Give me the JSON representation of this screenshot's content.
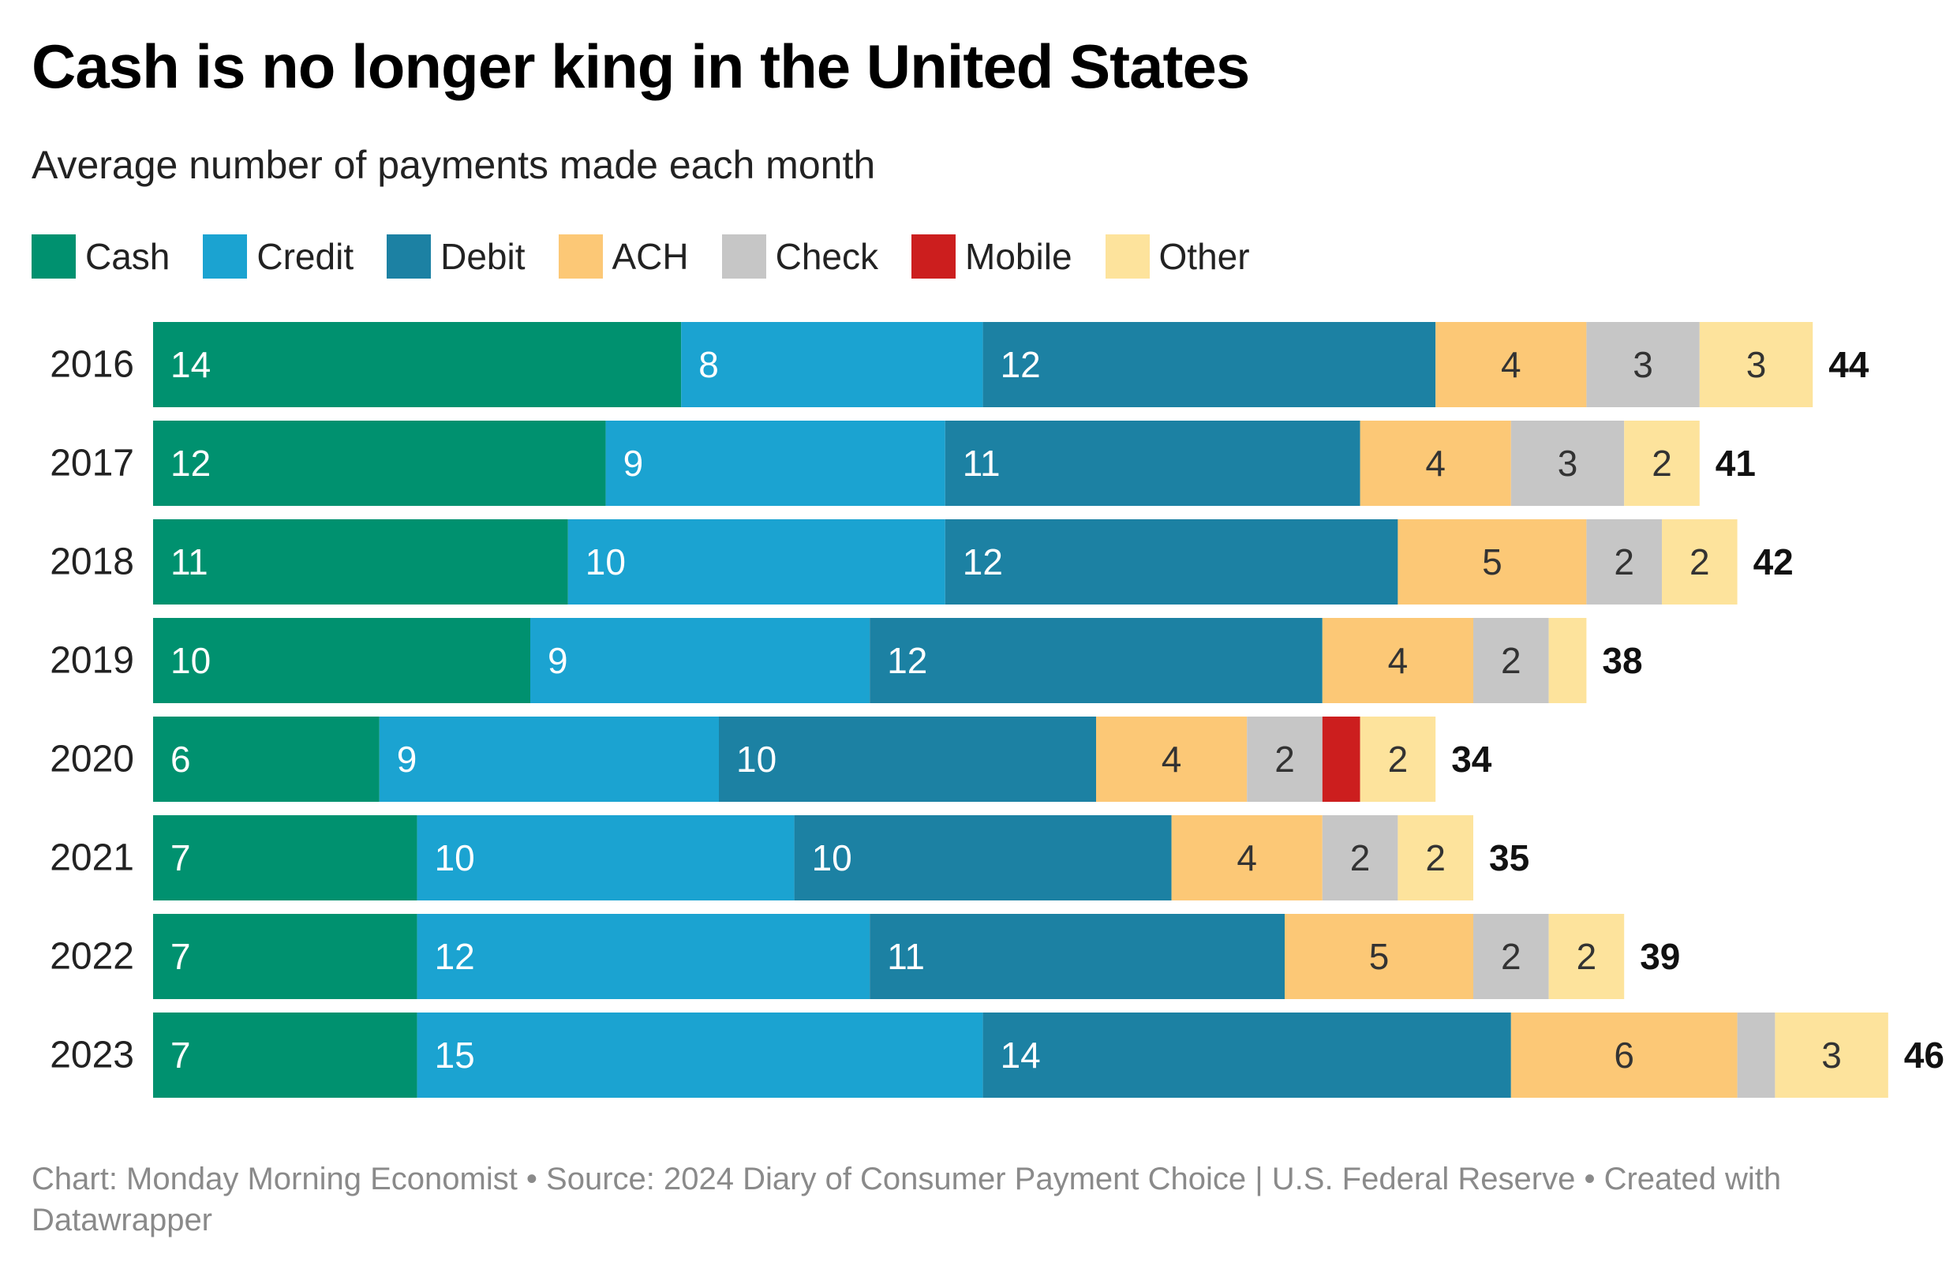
{
  "chart_data": {
    "type": "bar",
    "orientation": "horizontal",
    "stacked": true,
    "title": "Cash is no longer king in the United States",
    "subtitle": "Average number of payments made each month",
    "categories": [
      "2016",
      "2017",
      "2018",
      "2019",
      "2020",
      "2021",
      "2022",
      "2023"
    ],
    "series": [
      {
        "name": "Cash",
        "color": "#00916f",
        "values": [
          14,
          12,
          11,
          10,
          6,
          7,
          7,
          7
        ],
        "labels": [
          "14",
          "12",
          "11",
          "10",
          "6",
          "7",
          "7",
          "7"
        ]
      },
      {
        "name": "Credit",
        "color": "#1ba3d1",
        "values": [
          8,
          9,
          10,
          9,
          9,
          10,
          12,
          15
        ],
        "labels": [
          "8",
          "9",
          "10",
          "9",
          "9",
          "10",
          "12",
          "15"
        ]
      },
      {
        "name": "Debit",
        "color": "#1c81a3",
        "values": [
          12,
          11,
          12,
          12,
          10,
          10,
          11,
          14
        ],
        "labels": [
          "12",
          "11",
          "12",
          "12",
          "10",
          "10",
          "11",
          "14"
        ]
      },
      {
        "name": "ACH",
        "color": "#fcc876",
        "values": [
          4,
          4,
          5,
          4,
          4,
          4,
          5,
          6
        ],
        "labels": [
          "4",
          "4",
          "5",
          "4",
          "4",
          "4",
          "5",
          "6"
        ]
      },
      {
        "name": "Check",
        "color": "#c6c6c6",
        "values": [
          3,
          3,
          2,
          2,
          2,
          2,
          2,
          1
        ],
        "labels": [
          "3",
          "3",
          "2",
          "2",
          "2",
          "2",
          "2",
          ""
        ]
      },
      {
        "name": "Mobile",
        "color": "#cc1e1e",
        "values": [
          0,
          0,
          0,
          0,
          1,
          0,
          0,
          0
        ],
        "labels": [
          "",
          "",
          "",
          "",
          "",
          "",
          "",
          ""
        ]
      },
      {
        "name": "Other",
        "color": "#fde39c",
        "values": [
          3,
          2,
          2,
          1,
          2,
          2,
          2,
          3
        ],
        "labels": [
          "3",
          "2",
          "2",
          "",
          "2",
          "2",
          "2",
          "3"
        ]
      }
    ],
    "totals": [
      "44",
      "41",
      "42",
      "38",
      "34",
      "35",
      "39",
      "46"
    ],
    "xlim": [
      0,
      46
    ],
    "legend": "top-left",
    "grid": false
  },
  "footer": "Chart: Monday Morning Economist • Source: 2024 Diary of Consumer Payment Choice | U.S. Federal Reserve • Created with Datawrapper"
}
